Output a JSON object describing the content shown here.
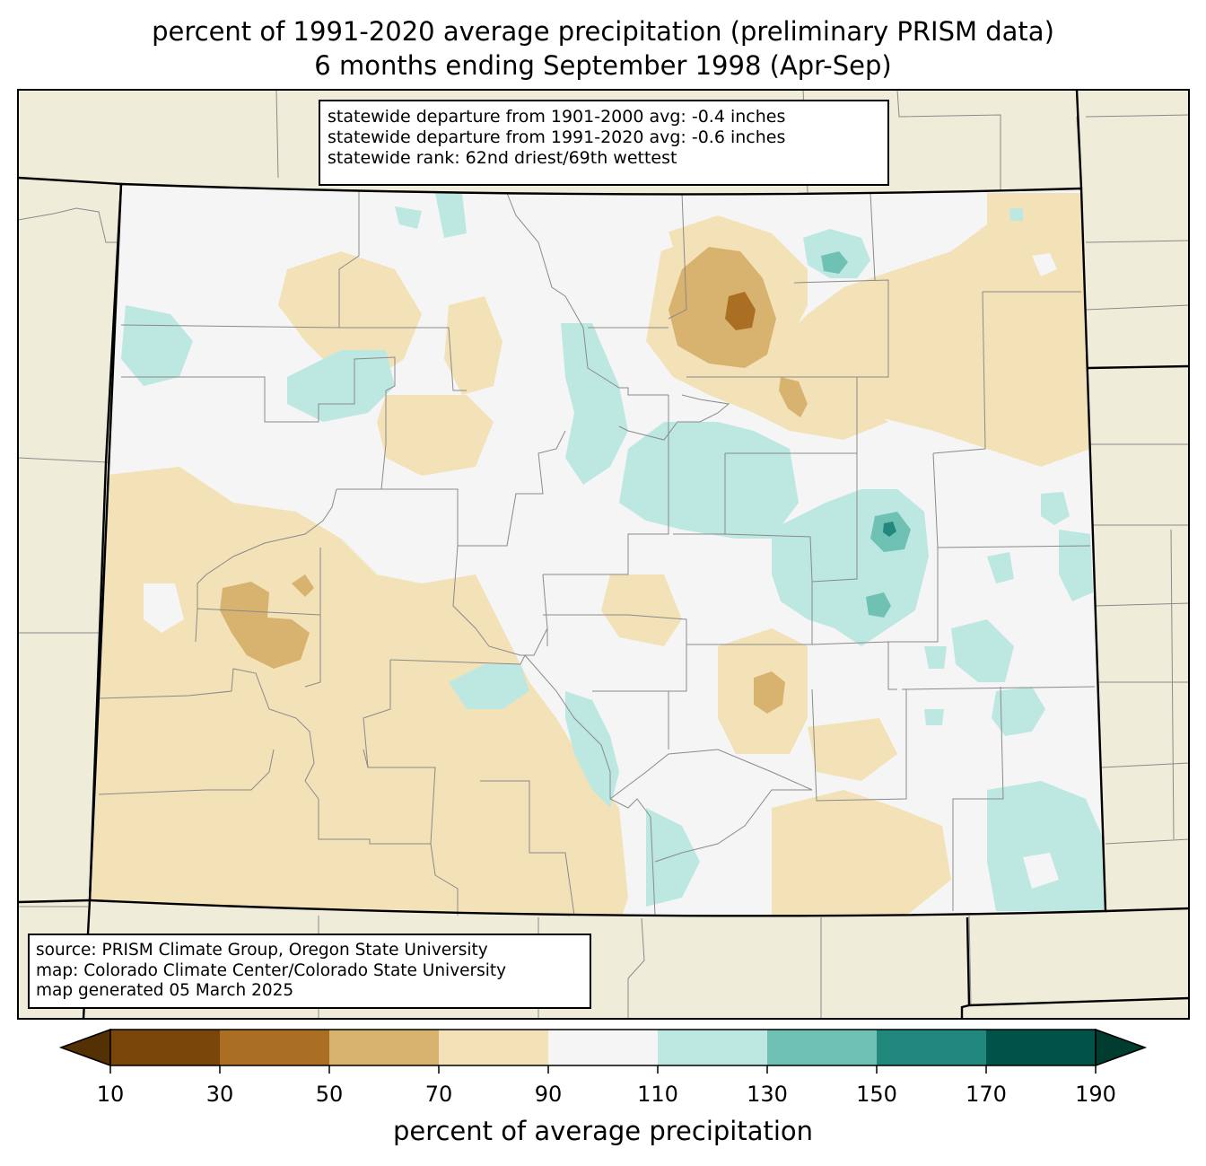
{
  "title": {
    "line1": "percent of 1991-2020 average precipitation (preliminary PRISM data)",
    "line2": "6 months ending September 1998 (Apr-Sep)"
  },
  "stats": {
    "line1": "statewide departure from 1901-2000 avg: -0.4 inches",
    "line2": "statewide departure from 1991-2020 avg: -0.6 inches",
    "line3": "statewide rank: 62nd driest/69th wettest"
  },
  "source": {
    "line1": "source: PRISM Climate Group, Oregon State University",
    "line2": "map: Colorado Climate Center/Colorado State University",
    "line3": "map generated 05 March 2025"
  },
  "colorbar": {
    "title": "percent of average precipitation",
    "ticks": [
      "10",
      "30",
      "50",
      "70",
      "90",
      "110",
      "130",
      "150",
      "170",
      "190"
    ],
    "colors": {
      "under_10": "#543005",
      "10-30": "#7a4508",
      "30-50": "#ab6f24",
      "50-70": "#d8b26f",
      "70-90": "#f3e2b8",
      "90-110": "#f4f5f4",
      "110-130": "#bde8e1",
      "130-150": "#6fc1b3",
      "150-170": "#22877c",
      "170-190": "#01534a",
      "over_190": "#003c30"
    }
  },
  "map": {
    "land_color": "#efedda",
    "state_fill": "#f4f5f4"
  }
}
